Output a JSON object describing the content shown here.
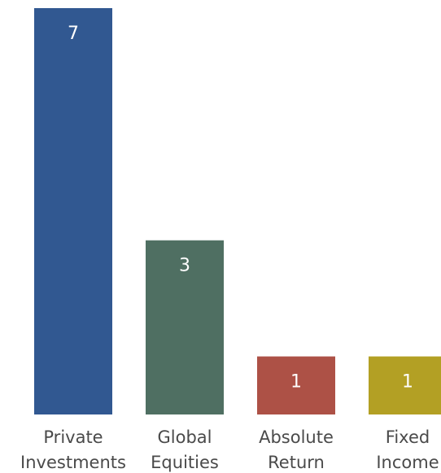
{
  "chart_data": {
    "type": "bar",
    "categories": [
      [
        "Private",
        "Investments"
      ],
      [
        "Global",
        "Equities"
      ],
      [
        "Absolute",
        "Return"
      ],
      [
        "Fixed",
        "Income"
      ]
    ],
    "values": [
      7,
      3,
      1,
      1
    ],
    "data_labels": [
      "7",
      "3",
      "1",
      "1"
    ],
    "colors": [
      "#315891",
      "#4f6f62",
      "#ad5146",
      "#b3a024"
    ],
    "ylim": [
      0,
      7
    ],
    "grid": false,
    "legend": "none"
  }
}
